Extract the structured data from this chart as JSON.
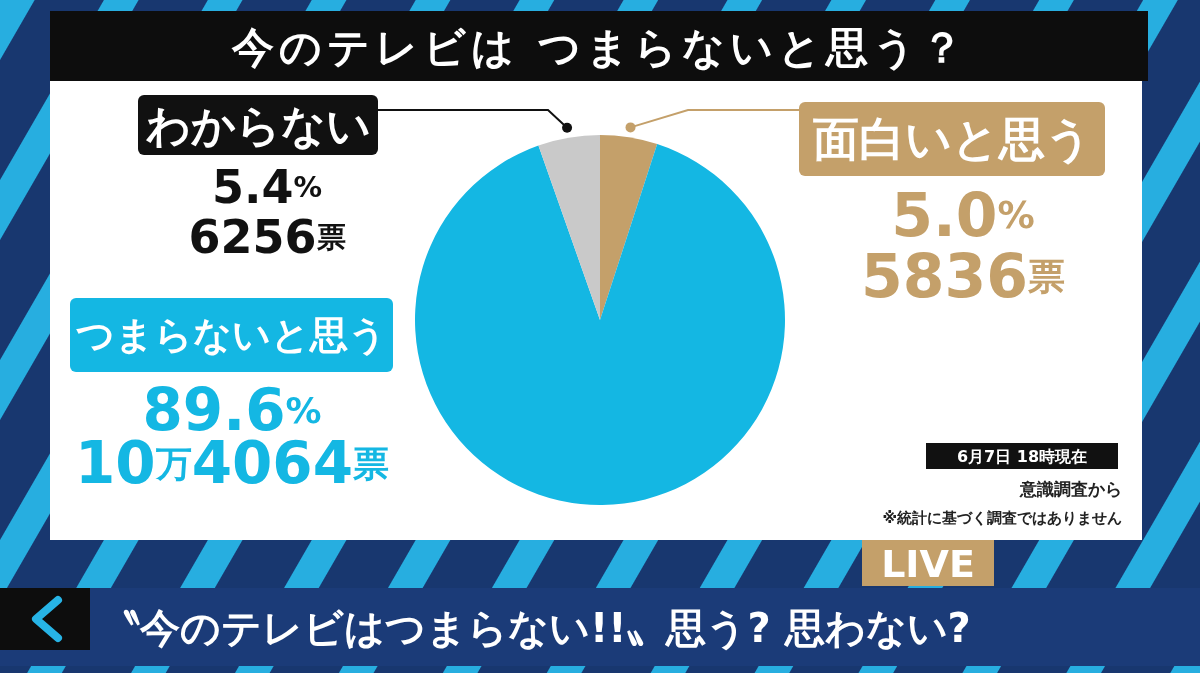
{
  "chart_data": {
    "type": "pie",
    "title": "今のテレビは つまらないと思う？",
    "categories": [
      "面白いと思う",
      "つまらないと思う",
      "わからない"
    ],
    "values": [
      5.0,
      89.6,
      5.4
    ],
    "colors": [
      "#c4a06a",
      "#14b7e3",
      "#c9c9c9"
    ],
    "value_labels": [
      "5.0%\n5836票",
      "89.6%\n10万4064票",
      "5.4%\n6256票"
    ],
    "annotations": [
      "6月7日 18時現在",
      "意識調査から",
      "※統計に基づく調査ではありません",
      "LIVE",
      "〝今のテレビはつまらない!!〟思う? 思わない?"
    ]
  }
}
